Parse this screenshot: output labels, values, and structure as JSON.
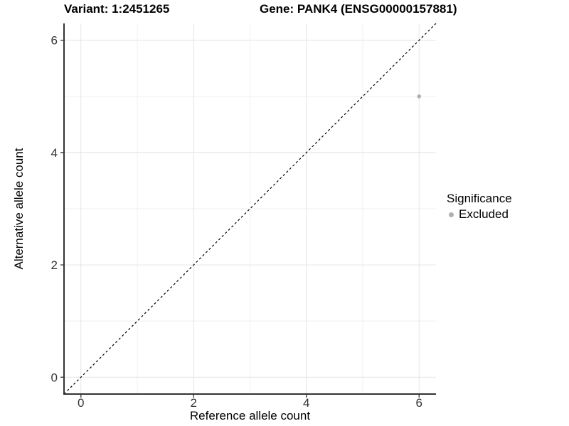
{
  "chart_data": {
    "type": "scatter",
    "titles": {
      "variant": "Variant: 1:2451265",
      "gene": "Gene: PANK4 (ENSG00000157881)"
    },
    "axes": {
      "x": {
        "label": "Reference allele count",
        "ticks": [
          0,
          2,
          4,
          6
        ],
        "minor_gridlines": [
          1,
          3,
          5
        ],
        "lim": [
          -0.3,
          6.3
        ]
      },
      "y": {
        "label": "Alternative allele count",
        "ticks": [
          0,
          2,
          4,
          6
        ],
        "minor_gridlines": [
          1,
          3,
          5
        ],
        "lim": [
          -0.3,
          6.3
        ]
      }
    },
    "grid": true,
    "identity_line": {
      "slope": 1,
      "intercept": 0,
      "style": "dashed"
    },
    "points": [
      {
        "x": 6,
        "y": 5,
        "significance": "Excluded"
      }
    ],
    "legend": {
      "title": "Significance",
      "position": "right",
      "entries": [
        {
          "label": "Excluded",
          "color": "#b0b0b0"
        }
      ]
    },
    "colors": {
      "point": "#b0b0b0",
      "grid_major": "#e4e4e4",
      "grid_minor": "#efefef",
      "axis": "#333333",
      "tick_text": "#333333",
      "identity_line": "#000000"
    }
  }
}
